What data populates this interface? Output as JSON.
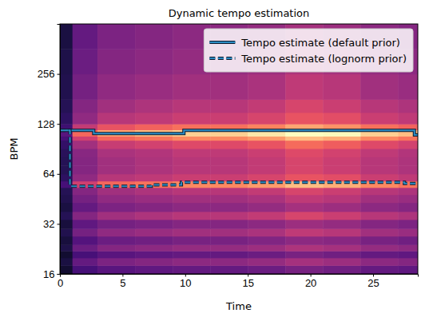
{
  "chart_data": {
    "type": "line",
    "title": "Dynamic tempo estimation",
    "x_label": "Time",
    "y_label": "BPM",
    "log": "y",
    "xlim": [
      0,
      28.57
    ],
    "xticks": [
      0,
      5,
      10,
      15,
      20,
      25
    ],
    "ylim": [
      16,
      512
    ],
    "yticks": [
      16,
      32,
      64,
      128,
      256
    ],
    "legend": "upper right",
    "heatmap": {
      "x": [
        0,
        1,
        3,
        6,
        9,
        12,
        15,
        18,
        21,
        24,
        27,
        28.57
      ],
      "y": [
        16,
        18,
        20,
        22,
        24,
        27,
        30,
        34,
        38,
        43,
        48,
        53,
        58,
        64,
        72,
        81,
        91,
        102,
        108,
        118,
        128,
        150,
        180,
        256,
        362,
        512
      ],
      "zlim": [
        0,
        1
      ],
      "z": [
        [
          0.09,
          0.23,
          0.27,
          0.29,
          0.3,
          0.3,
          0.32,
          0.35,
          0.33,
          0.3,
          0.29
        ],
        [
          0.12,
          0.3,
          0.36,
          0.38,
          0.4,
          0.4,
          0.42,
          0.46,
          0.44,
          0.4,
          0.38
        ],
        [
          0.09,
          0.23,
          0.27,
          0.29,
          0.3,
          0.3,
          0.32,
          0.35,
          0.33,
          0.3,
          0.29
        ],
        [
          0.13,
          0.32,
          0.38,
          0.4,
          0.42,
          0.42,
          0.44,
          0.48,
          0.46,
          0.42,
          0.4
        ],
        [
          0.11,
          0.26,
          0.32,
          0.33,
          0.35,
          0.35,
          0.37,
          0.4,
          0.39,
          0.35,
          0.33
        ],
        [
          0.14,
          0.34,
          0.41,
          0.43,
          0.45,
          0.45,
          0.47,
          0.52,
          0.5,
          0.45,
          0.43
        ],
        [
          0.11,
          0.29,
          0.34,
          0.36,
          0.38,
          0.38,
          0.4,
          0.44,
          0.42,
          0.38,
          0.36
        ],
        [
          0.15,
          0.38,
          0.45,
          0.48,
          0.5,
          0.5,
          0.53,
          0.58,
          0.55,
          0.5,
          0.48
        ],
        [
          0.12,
          0.3,
          0.36,
          0.38,
          0.4,
          0.4,
          0.42,
          0.46,
          0.44,
          0.4,
          0.38
        ],
        [
          0.14,
          0.34,
          0.41,
          0.43,
          0.45,
          0.45,
          0.47,
          0.52,
          0.5,
          0.45,
          0.43
        ],
        [
          0.15,
          0.38,
          0.45,
          0.48,
          0.5,
          0.5,
          0.53,
          0.58,
          0.55,
          0.5,
          0.48
        ],
        [
          0.23,
          0.56,
          0.68,
          0.71,
          0.75,
          0.75,
          0.79,
          0.86,
          0.83,
          0.75,
          0.71
        ],
        [
          0.17,
          0.41,
          0.5,
          0.52,
          0.55,
          0.55,
          0.58,
          0.63,
          0.61,
          0.55,
          0.52
        ],
        [
          0.15,
          0.38,
          0.45,
          0.48,
          0.5,
          0.5,
          0.53,
          0.58,
          0.55,
          0.5,
          0.48
        ],
        [
          0.15,
          0.38,
          0.45,
          0.48,
          0.5,
          0.5,
          0.53,
          0.58,
          0.55,
          0.5,
          0.48
        ],
        [
          0.16,
          0.39,
          0.47,
          0.49,
          0.52,
          0.52,
          0.55,
          0.6,
          0.57,
          0.52,
          0.49
        ],
        [
          0.18,
          0.45,
          0.54,
          0.57,
          0.6,
          0.6,
          0.63,
          0.69,
          0.66,
          0.6,
          0.57
        ],
        [
          0.23,
          0.56,
          0.68,
          0.71,
          0.75,
          0.75,
          0.79,
          0.86,
          0.83,
          0.75,
          0.71
        ],
        [
          0.27,
          0.68,
          0.81,
          0.86,
          0.9,
          0.9,
          0.95,
          1.0,
          0.99,
          0.9,
          0.86
        ],
        [
          0.21,
          0.53,
          0.63,
          0.67,
          0.7,
          0.7,
          0.74,
          0.81,
          0.77,
          0.7,
          0.67
        ],
        [
          0.17,
          0.41,
          0.5,
          0.52,
          0.55,
          0.55,
          0.58,
          0.63,
          0.61,
          0.55,
          0.52
        ],
        [
          0.15,
          0.38,
          0.45,
          0.48,
          0.5,
          0.5,
          0.53,
          0.58,
          0.55,
          0.5,
          0.48
        ],
        [
          0.14,
          0.34,
          0.41,
          0.43,
          0.45,
          0.45,
          0.47,
          0.52,
          0.5,
          0.45,
          0.43
        ],
        [
          0.13,
          0.32,
          0.38,
          0.4,
          0.42,
          0.42,
          0.44,
          0.48,
          0.46,
          0.42,
          0.4
        ],
        [
          0.12,
          0.3,
          0.36,
          0.38,
          0.4,
          0.4,
          0.42,
          0.46,
          0.44,
          0.4,
          0.38
        ]
      ]
    },
    "series": [
      {
        "name": "Tempo estimate (default prior)",
        "color": "#2b8cc4",
        "line_style": "solid",
        "x": [
          0,
          2.7,
          9.9,
          28.3,
          28.57
        ],
        "values": [
          117,
          112,
          117,
          110,
          110
        ]
      },
      {
        "name": "Tempo estimate (lognorm prior)",
        "color": "#2b8cc4",
        "line_style": "dashed",
        "x": [
          0,
          0.8,
          7.3,
          9.7,
          27.5,
          28.57
        ],
        "values": [
          117,
          54,
          55,
          57,
          56,
          56
        ]
      }
    ]
  }
}
